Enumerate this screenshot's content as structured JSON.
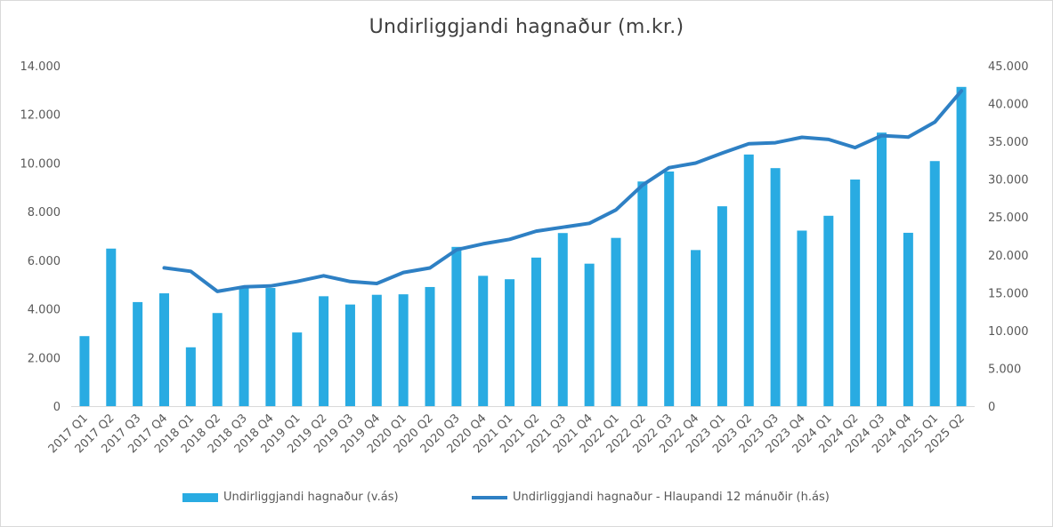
{
  "chart_data": {
    "type": "bar",
    "title": "Undirliggjandi hagnaður (m.kr.)",
    "categories": [
      "2017 Q1",
      "2017 Q2",
      "2017 Q3",
      "2017 Q4",
      "2018 Q1",
      "2018 Q2",
      "2018 Q3",
      "2018 Q4",
      "2019 Q1",
      "2019 Q2",
      "2019 Q3",
      "2019 Q4",
      "2020 Q1",
      "2020 Q2",
      "2020 Q3",
      "2020 Q4",
      "2021 Q1",
      "2021 Q2",
      "2021 Q3",
      "2021 Q4",
      "2022 Q1",
      "2022 Q2",
      "2022 Q3",
      "2022 Q4",
      "2023 Q1",
      "2023 Q2",
      "2023 Q3",
      "2023 Q4",
      "2024 Q1",
      "2024 Q2",
      "2024 Q3",
      "2024 Q4",
      "2025 Q1",
      "2025 Q2"
    ],
    "series": [
      {
        "name": "Undirliggjandi hagnaður (v.ás)",
        "type": "bar",
        "axis": "left",
        "color": "#29abe2",
        "values": [
          2880,
          6480,
          4280,
          4640,
          2420,
          3830,
          4930,
          4860,
          3030,
          4520,
          4180,
          4580,
          4600,
          4900,
          6550,
          5360,
          5220,
          6110,
          7120,
          5860,
          6920,
          9240,
          9650,
          6420,
          8220,
          10350,
          9790,
          7220,
          7830,
          9320,
          11250,
          7130,
          10080,
          13130
        ]
      },
      {
        "name": "Undirliggjandi hagnaður - Hlaupandi 12 mánuðir (h.ás)",
        "type": "line",
        "axis": "right",
        "color": "#2e80c4",
        "values": [
          null,
          null,
          null,
          18280,
          17820,
          15170,
          15770,
          15880,
          16480,
          17240,
          16470,
          16210,
          17670,
          18270,
          20670,
          21450,
          22050,
          23130,
          23650,
          24170,
          25940,
          29220,
          31520,
          32140,
          33450,
          34700,
          34830,
          35540,
          35260,
          34180,
          35770,
          35580,
          37550,
          41670
        ]
      }
    ],
    "left_axis": {
      "ylim": [
        0,
        14000
      ],
      "ticks": [
        "0",
        "2.000",
        "4.000",
        "6.000",
        "8.000",
        "10.000",
        "12.000",
        "14.000"
      ]
    },
    "right_axis": {
      "ylim": [
        0,
        45000
      ],
      "ticks": [
        "0",
        "5.000",
        "10.000",
        "15.000",
        "20.000",
        "25.000",
        "30.000",
        "35.000",
        "40.000",
        "45.000"
      ]
    },
    "grid": false,
    "legend_position": "bottom"
  }
}
